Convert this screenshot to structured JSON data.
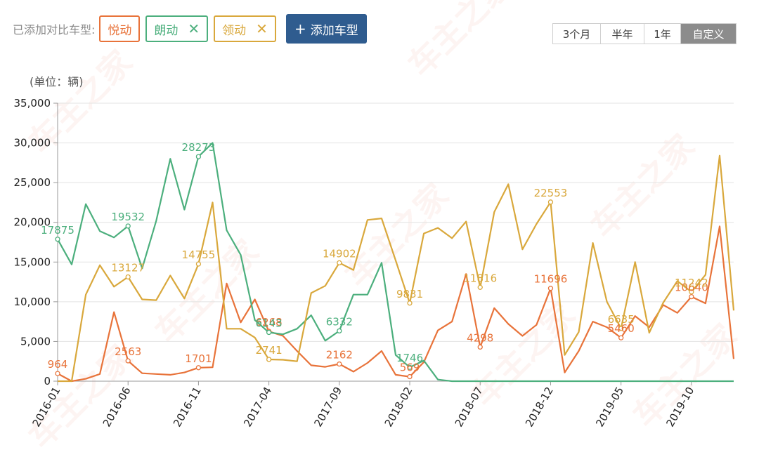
{
  "header": {
    "compare_label": "已添加对比车型:",
    "tags": [
      {
        "label": "悦动",
        "color": "#e8733a",
        "removable": false
      },
      {
        "label": "朗动",
        "color": "#4caf7d",
        "removable": true
      },
      {
        "label": "领动",
        "color": "#d9a83c",
        "removable": true
      }
    ],
    "close_glyph": "✕",
    "add_plus": "+",
    "add_label": "添加车型"
  },
  "range": [
    {
      "label": "3个月",
      "active": false
    },
    {
      "label": "半年",
      "active": false
    },
    {
      "label": "1年",
      "active": false
    },
    {
      "label": "自定义",
      "active": true
    }
  ],
  "watermark": "车主之家",
  "chart_data": {
    "type": "line",
    "unit_label": "(单位：辆)",
    "ylim": [
      0,
      35000
    ],
    "yticks": [
      0,
      5000,
      10000,
      15000,
      20000,
      25000,
      30000,
      35000
    ],
    "ytick_labels": [
      "0",
      "5,000",
      "10,000",
      "15,000",
      "20,000",
      "25,000",
      "30,000",
      "35,000"
    ],
    "grid": true,
    "legend": "none",
    "x": [
      "2016-01",
      "2016-02",
      "2016-03",
      "2016-04",
      "2016-05",
      "2016-06",
      "2016-07",
      "2016-08",
      "2016-09",
      "2016-10",
      "2016-11",
      "2016-12",
      "2017-01",
      "2017-02",
      "2017-03",
      "2017-04",
      "2017-05",
      "2017-06",
      "2017-07",
      "2017-08",
      "2017-09",
      "2017-10",
      "2017-11",
      "2017-12",
      "2018-01",
      "2018-02",
      "2018-03",
      "2018-04",
      "2018-05",
      "2018-06",
      "2018-07",
      "2018-08",
      "2018-09",
      "2018-10",
      "2018-11",
      "2018-12",
      "2019-01",
      "2019-02",
      "2019-03",
      "2019-04",
      "2019-05",
      "2019-06",
      "2019-07",
      "2019-08",
      "2019-09",
      "2019-10",
      "2019-11",
      "2019-12",
      "2020-01"
    ],
    "xtick_labels": [
      "2016-01",
      "2016-06",
      "2016-11",
      "2017-04",
      "2017-09",
      "2018-02",
      "2018-07",
      "2018-12",
      "2019-05",
      "2019-10"
    ],
    "series": [
      {
        "name": "悦动",
        "color": "#e8733a",
        "values": [
          964,
          0,
          300,
          900,
          8700,
          2563,
          1000,
          900,
          800,
          1100,
          1701,
          1750,
          12300,
          7400,
          10300,
          6268,
          5700,
          3800,
          2000,
          1800,
          2162,
          1200,
          2300,
          3800,
          800,
          569,
          2400,
          6400,
          7500,
          13500,
          4298,
          9200,
          7200,
          5700,
          7100,
          11696,
          1100,
          3800,
          7500,
          6800,
          5460,
          8200,
          6800,
          9600,
          8600,
          10640,
          9800,
          19500,
          2800
        ],
        "labels": [
          {
            "i": 0,
            "text": "964"
          },
          {
            "i": 5,
            "text": "2563"
          },
          {
            "i": 10,
            "text": "1701"
          },
          {
            "i": 15,
            "text": "6268"
          },
          {
            "i": 20,
            "text": "2162"
          },
          {
            "i": 25,
            "text": "569"
          },
          {
            "i": 30,
            "text": "4298"
          },
          {
            "i": 35,
            "text": "11696"
          },
          {
            "i": 40,
            "text": "5460"
          },
          {
            "i": 45,
            "text": "10640"
          }
        ]
      },
      {
        "name": "朗动",
        "color": "#4caf7d",
        "values": [
          17875,
          14700,
          22300,
          18900,
          18100,
          19532,
          14200,
          20200,
          28000,
          21600,
          28273,
          30000,
          19000,
          15900,
          7700,
          6143,
          5900,
          6600,
          8300,
          5100,
          6332,
          10900,
          10900,
          14900,
          3300,
          1746,
          2600,
          200,
          0,
          0,
          0,
          0,
          0,
          0,
          0,
          0,
          0,
          0,
          0,
          0,
          0,
          0,
          0,
          0,
          0,
          0,
          0,
          0,
          0
        ],
        "labels": [
          {
            "i": 0,
            "text": "17875"
          },
          {
            "i": 5,
            "text": "19532"
          },
          {
            "i": 10,
            "text": "28273"
          },
          {
            "i": 15,
            "text": "6143"
          },
          {
            "i": 20,
            "text": "6332"
          },
          {
            "i": 25,
            "text": "1746"
          }
        ]
      },
      {
        "name": "领动",
        "color": "#d9a83c",
        "values": [
          0,
          0,
          10900,
          14600,
          11900,
          13127,
          10300,
          10200,
          13300,
          10400,
          14755,
          22500,
          6600,
          6600,
          5500,
          2741,
          2700,
          2500,
          11100,
          12000,
          14902,
          14000,
          20300,
          20500,
          15200,
          9831,
          18600,
          19300,
          18000,
          20100,
          11816,
          21300,
          24800,
          16600,
          19800,
          22553,
          3300,
          6200,
          17400,
          10000,
          6635,
          15000,
          6100,
          9900,
          12600,
          11242,
          13400,
          28400,
          8900
        ],
        "labels": [
          {
            "i": 5,
            "text": "13127"
          },
          {
            "i": 10,
            "text": "14755"
          },
          {
            "i": 15,
            "text": "2741"
          },
          {
            "i": 20,
            "text": "14902"
          },
          {
            "i": 25,
            "text": "9831"
          },
          {
            "i": 30,
            "text": "11816"
          },
          {
            "i": 35,
            "text": "22553"
          },
          {
            "i": 40,
            "text": "6635"
          },
          {
            "i": 45,
            "text": "11242"
          }
        ]
      }
    ]
  }
}
